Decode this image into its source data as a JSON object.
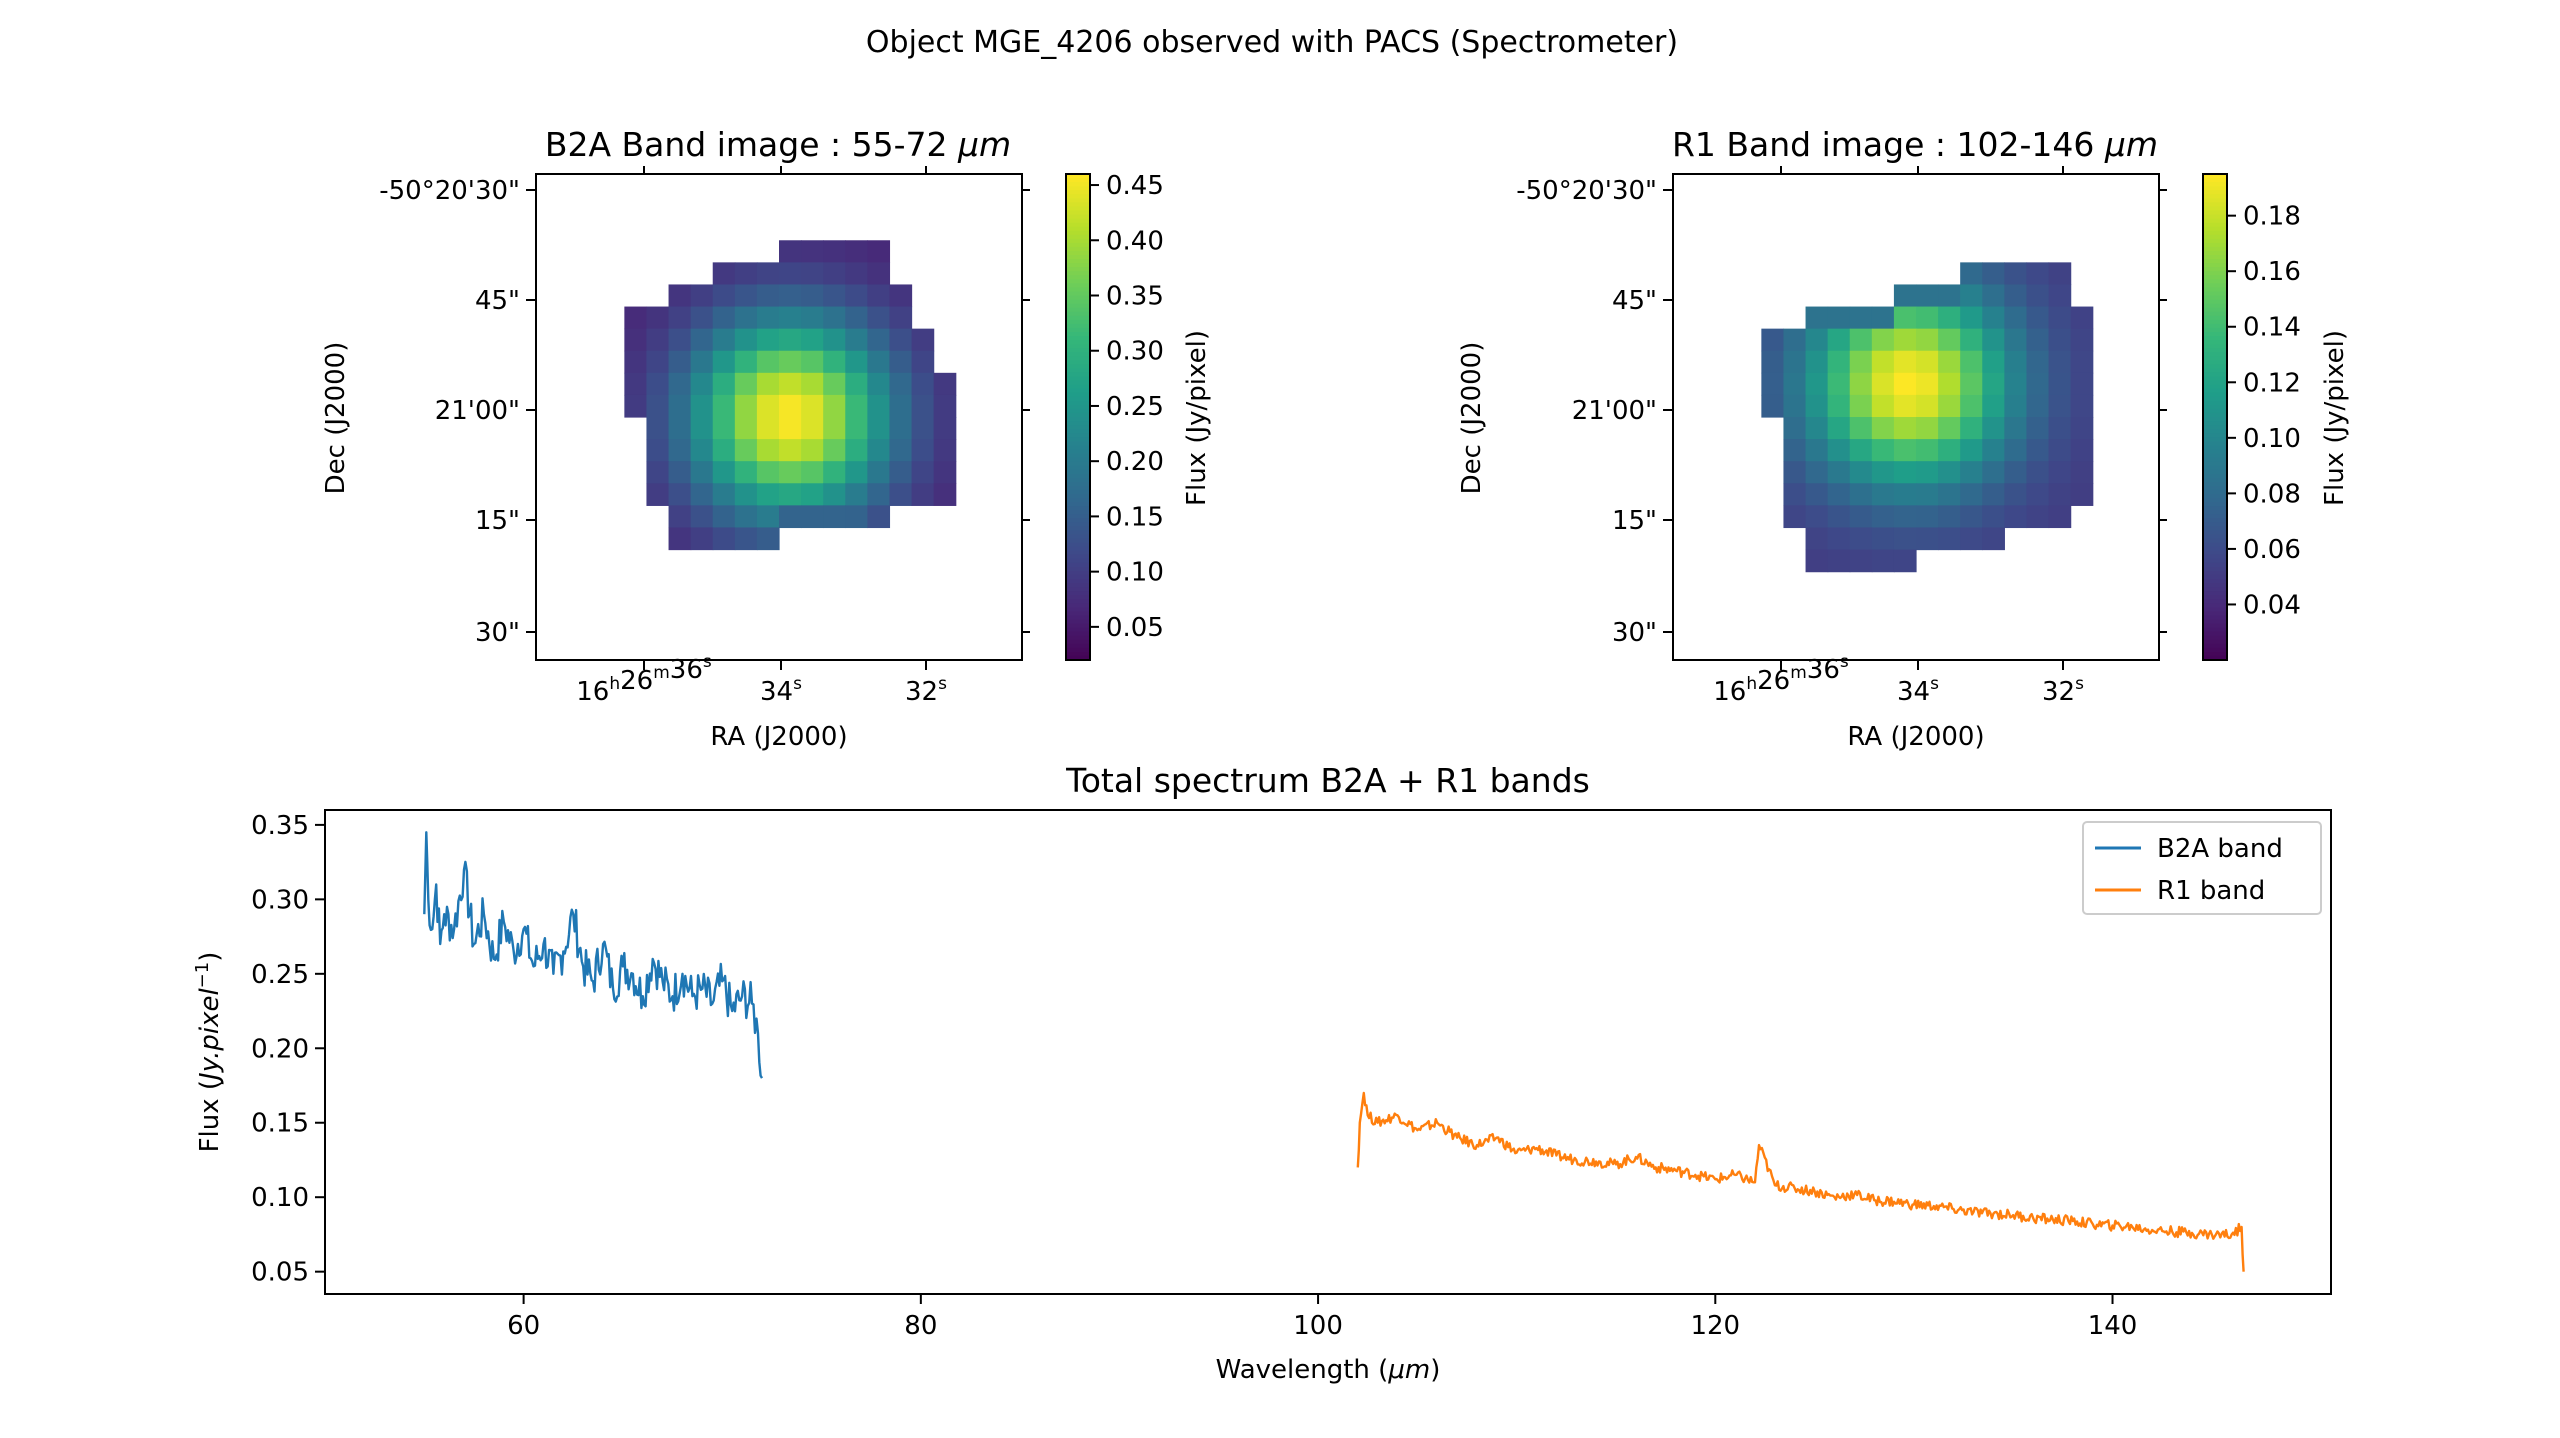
{
  "figure": {
    "title": "Object MGE_4206 observed with PACS (Spectrometer)"
  },
  "chart_data": [
    {
      "type": "heatmap",
      "title_prefix": "B2A Band image : 55-72 ",
      "title_unit": "μm",
      "xlabel": "RA (J2000)",
      "ylabel": "Dec (J2000)",
      "ra_ticks": [
        {
          "h": "16",
          "m": "26",
          "s": "36"
        },
        {
          "s": "34"
        },
        {
          "s": "32"
        }
      ],
      "dec_ticks": [
        "-50°20'30\"",
        "45\"",
        "21'00\"",
        "15\"",
        "30\""
      ],
      "colorbar_label": "Flux (Jy/pixel)",
      "colorbar_range": [
        0.02,
        0.46
      ],
      "colorbar_ticks": [
        "0.05",
        "0.10",
        "0.15",
        "0.20",
        "0.25",
        "0.30",
        "0.35",
        "0.40",
        "0.45"
      ],
      "colormap": [
        "#440154",
        "#482878",
        "#3e4989",
        "#31688e",
        "#26828e",
        "#1f9e89",
        "#35b779",
        "#6ece58",
        "#b5de2b",
        "#fde725"
      ],
      "grid_size": [
        22,
        22
      ],
      "pixel_values": [
        [
          null,
          null,
          null,
          null,
          null,
          null,
          null,
          null,
          null,
          null,
          null,
          null,
          null,
          null,
          null,
          null,
          null,
          null,
          null,
          null,
          null,
          null
        ],
        [
          null,
          null,
          null,
          null,
          null,
          null,
          null,
          null,
          null,
          null,
          null,
          null,
          null,
          null,
          null,
          null,
          null,
          null,
          null,
          null,
          null,
          null
        ],
        [
          null,
          null,
          null,
          null,
          null,
          null,
          null,
          null,
          null,
          null,
          null,
          null,
          null,
          null,
          null,
          null,
          null,
          null,
          null,
          null,
          null,
          null
        ],
        [
          null,
          null,
          null,
          null,
          null,
          null,
          null,
          null,
          null,
          null,
          null,
          null,
          null,
          null,
          null,
          null,
          null,
          null,
          null,
          null,
          null,
          null
        ],
        [
          null,
          null,
          null,
          null,
          null,
          null,
          null,
          null,
          null,
          null,
          null,
          null,
          null,
          null,
          null,
          null,
          null,
          null,
          null,
          null,
          null,
          null
        ],
        [
          null,
          null,
          null,
          null,
          null,
          null,
          null,
          null,
          null,
          null,
          null,
          null,
          null,
          null,
          null,
          null,
          null,
          null,
          null,
          null,
          null,
          null
        ],
        [
          null,
          null,
          null,
          null,
          null,
          null,
          null,
          null,
          null,
          null,
          null,
          null,
          null,
          null,
          null,
          null,
          null,
          null,
          null,
          null,
          null,
          null
        ],
        [
          null,
          null,
          null,
          null,
          null,
          null,
          null,
          null,
          null,
          null,
          null,
          null,
          null,
          null,
          null,
          null,
          null,
          null,
          null,
          null,
          null,
          null
        ],
        [
          null,
          null,
          null,
          null,
          null,
          null,
          null,
          null,
          null,
          null,
          null,
          null,
          null,
          null,
          null,
          null,
          null,
          null,
          null,
          null,
          null,
          null
        ],
        [
          null,
          null,
          null,
          null,
          null,
          null,
          null,
          null,
          null,
          null,
          null,
          null,
          null,
          null,
          null,
          null,
          null,
          null,
          null,
          null,
          null,
          null
        ],
        [
          null,
          null,
          null,
          null,
          null,
          null,
          null,
          null,
          null,
          null,
          null,
          null,
          null,
          null,
          null,
          null,
          null,
          null,
          null,
          null,
          null,
          null
        ],
        [
          null,
          null,
          null,
          null,
          null,
          null,
          null,
          null,
          null,
          null,
          null,
          null,
          null,
          null,
          null,
          null,
          null,
          null,
          null,
          null,
          null,
          null
        ],
        [
          null,
          null,
          null,
          null,
          null,
          null,
          null,
          null,
          null,
          null,
          null,
          null,
          null,
          null,
          null,
          null,
          null,
          null,
          null,
          null,
          null,
          null
        ],
        [
          null,
          null,
          null,
          null,
          null,
          null,
          null,
          null,
          null,
          null,
          null,
          null,
          null,
          null,
          null,
          null,
          null,
          null,
          null,
          null,
          null,
          null
        ],
        [
          null,
          null,
          null,
          null,
          null,
          null,
          null,
          null,
          null,
          null,
          null,
          null,
          null,
          null,
          null,
          null,
          null,
          null,
          null,
          null,
          null,
          null
        ],
        [
          null,
          null,
          null,
          null,
          null,
          null,
          null,
          null,
          null,
          null,
          null,
          null,
          null,
          null,
          null,
          null,
          null,
          null,
          null,
          null,
          null,
          null
        ],
        [
          null,
          null,
          null,
          null,
          null,
          null,
          null,
          null,
          null,
          null,
          null,
          null,
          null,
          null,
          null,
          null,
          null,
          null,
          null,
          null,
          null,
          null
        ],
        [
          null,
          null,
          null,
          null,
          null,
          null,
          null,
          null,
          null,
          null,
          null,
          null,
          null,
          null,
          null,
          null,
          null,
          null,
          null,
          null,
          null,
          null
        ],
        [
          null,
          null,
          null,
          null,
          null,
          null,
          null,
          null,
          null,
          null,
          null,
          null,
          null,
          null,
          null,
          null,
          null,
          null,
          null,
          null,
          null,
          null
        ],
        [
          null,
          null,
          null,
          null,
          null,
          null,
          null,
          null,
          null,
          null,
          null,
          null,
          null,
          null,
          null,
          null,
          null,
          null,
          null,
          null,
          null,
          null
        ],
        [
          null,
          null,
          null,
          null,
          null,
          null,
          null,
          null,
          null,
          null,
          null,
          null,
          null,
          null,
          null,
          null,
          null,
          null,
          null,
          null,
          null,
          null
        ],
        [
          null,
          null,
          null,
          null,
          null,
          null,
          null,
          null,
          null,
          null,
          null,
          null,
          null,
          null,
          null,
          null,
          null,
          null,
          null,
          null,
          null,
          null
        ]
      ],
      "source_extent": {
        "cols": [
          4,
          18
        ],
        "rows": [
          3,
          17
        ],
        "peak": 0.46,
        "edge": 0.06
      }
    },
    {
      "type": "heatmap",
      "title_prefix": "R1 Band image : 102-146 ",
      "title_unit": "μm",
      "xlabel": "RA (J2000)",
      "ylabel": "Dec (J2000)",
      "ra_ticks": [
        {
          "h": "16",
          "m": "26",
          "s": "36"
        },
        {
          "s": "34"
        },
        {
          "s": "32"
        }
      ],
      "dec_ticks": [
        "-50°20'30\"",
        "45\"",
        "21'00\"",
        "15\"",
        "30\""
      ],
      "colorbar_label": "Flux (Jy/pixel)",
      "colorbar_range": [
        0.02,
        0.195
      ],
      "colorbar_ticks": [
        "0.04",
        "0.06",
        "0.08",
        "0.10",
        "0.12",
        "0.14",
        "0.16",
        "0.18"
      ],
      "colormap": [
        "#440154",
        "#482878",
        "#3e4989",
        "#31688e",
        "#26828e",
        "#1f9e89",
        "#35b779",
        "#6ece58",
        "#b5de2b",
        "#fde725"
      ],
      "grid_size": [
        22,
        22
      ],
      "pixel_values": [],
      "source_extent": {
        "cols": [
          4,
          18
        ],
        "rows": [
          4,
          18
        ],
        "peak": 0.195,
        "edge": 0.05
      }
    },
    {
      "type": "line",
      "title": "Total spectrum B2A + R1 bands",
      "xlabel_prefix": "Wavelength (",
      "xlabel_unit": "μm",
      "xlabel_suffix": ")",
      "ylabel_prefix": "Flux (",
      "ylabel_unit": "Jy.pixel",
      "ylabel_exp": "−1",
      "ylabel_suffix": ")",
      "xlim": [
        50,
        151
      ],
      "ylim": [
        0.035,
        0.36
      ],
      "xticks": [
        60,
        80,
        100,
        120,
        140
      ],
      "yticks": [
        0.05,
        0.1,
        0.15,
        0.2,
        0.25,
        0.3,
        0.35
      ],
      "legend_position": "top-right",
      "series": [
        {
          "name": "B2A band",
          "color": "#1f77b4",
          "x": [
            55.0,
            55.1,
            55.2,
            55.4,
            55.6,
            55.8,
            56.0,
            56.5,
            57.0,
            57.5,
            58.0,
            58.5,
            59.0,
            59.5,
            60.0,
            60.5,
            61.0,
            61.5,
            62.0,
            62.5,
            63.0,
            63.5,
            64.0,
            64.5,
            65.0,
            65.5,
            66.0,
            66.5,
            67.0,
            67.5,
            68.0,
            68.5,
            69.0,
            69.5,
            70.0,
            70.5,
            71.0,
            71.5,
            71.8,
            72.0
          ],
          "y": [
            0.29,
            0.345,
            0.3,
            0.28,
            0.31,
            0.27,
            0.29,
            0.28,
            0.32,
            0.27,
            0.29,
            0.26,
            0.285,
            0.265,
            0.28,
            0.255,
            0.27,
            0.25,
            0.265,
            0.29,
            0.255,
            0.245,
            0.27,
            0.24,
            0.255,
            0.25,
            0.235,
            0.26,
            0.245,
            0.235,
            0.25,
            0.235,
            0.24,
            0.23,
            0.245,
            0.225,
            0.235,
            0.23,
            0.21,
            0.18
          ]
        },
        {
          "name": "R1 band",
          "color": "#ff7f0e",
          "x": [
            102.0,
            102.1,
            102.3,
            102.5,
            103,
            104,
            105,
            106,
            107,
            108,
            109,
            110,
            111,
            112,
            113,
            114,
            115,
            116,
            117,
            118,
            119,
            120,
            121,
            122,
            122.2,
            123,
            124,
            125,
            126,
            127,
            128,
            129,
            130,
            131,
            132,
            133,
            134,
            135,
            136,
            137,
            138,
            139,
            140,
            141,
            142,
            143,
            144,
            145,
            146,
            146.5,
            146.6
          ],
          "y": [
            0.12,
            0.15,
            0.17,
            0.155,
            0.15,
            0.155,
            0.145,
            0.15,
            0.14,
            0.135,
            0.14,
            0.13,
            0.133,
            0.128,
            0.125,
            0.124,
            0.122,
            0.127,
            0.12,
            0.118,
            0.115,
            0.112,
            0.115,
            0.11,
            0.135,
            0.108,
            0.106,
            0.104,
            0.1,
            0.102,
            0.098,
            0.097,
            0.095,
            0.094,
            0.092,
            0.09,
            0.089,
            0.088,
            0.086,
            0.085,
            0.084,
            0.082,
            0.081,
            0.08,
            0.078,
            0.077,
            0.076,
            0.075,
            0.075,
            0.08,
            0.05
          ]
        }
      ]
    }
  ]
}
